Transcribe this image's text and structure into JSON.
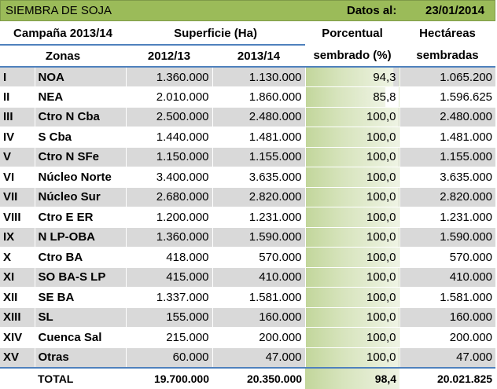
{
  "title": "SIEMBRA DE SOJA",
  "date_label": "Datos al:",
  "date_value": "23/01/2014",
  "headers": {
    "campaign": "Campaña 2013/14",
    "surface": "Superficie (Ha)",
    "percent_l1": "Porcentual",
    "percent_l2": "sembrado (%)",
    "hect_l1": "Hectáreas",
    "hect_l2": "sembradas",
    "zones": "Zonas",
    "y1": "2012/13",
    "y2": "2013/14"
  },
  "rows": [
    {
      "roman": "I",
      "zone": "NOA",
      "y1": "1.360.000",
      "y2": "1.130.000",
      "pct": "94,3",
      "hect": "1.065.200"
    },
    {
      "roman": "II",
      "zone": "NEA",
      "y1": "2.010.000",
      "y2": "1.860.000",
      "pct": "85,8",
      "hect": "1.596.625"
    },
    {
      "roman": "III",
      "zone": "Ctro N Cba",
      "y1": "2.500.000",
      "y2": "2.480.000",
      "pct": "100,0",
      "hect": "2.480.000"
    },
    {
      "roman": "IV",
      "zone": "S Cba",
      "y1": "1.440.000",
      "y2": "1.481.000",
      "pct": "100,0",
      "hect": "1.481.000"
    },
    {
      "roman": "V",
      "zone": "Ctro N SFe",
      "y1": "1.150.000",
      "y2": "1.155.000",
      "pct": "100,0",
      "hect": "1.155.000"
    },
    {
      "roman": "VI",
      "zone": "Núcleo Norte",
      "y1": "3.400.000",
      "y2": "3.635.000",
      "pct": "100,0",
      "hect": "3.635.000"
    },
    {
      "roman": "VII",
      "zone": "Núcleo Sur",
      "y1": "2.680.000",
      "y2": "2.820.000",
      "pct": "100,0",
      "hect": "2.820.000"
    },
    {
      "roman": "VIII",
      "zone": "Ctro E ER",
      "y1": "1.200.000",
      "y2": "1.231.000",
      "pct": "100,0",
      "hect": "1.231.000"
    },
    {
      "roman": "IX",
      "zone": "N LP-OBA",
      "y1": "1.360.000",
      "y2": "1.590.000",
      "pct": "100,0",
      "hect": "1.590.000"
    },
    {
      "roman": "X",
      "zone": "Ctro BA",
      "y1": "418.000",
      "y2": "570.000",
      "pct": "100,0",
      "hect": "570.000"
    },
    {
      "roman": "XI",
      "zone": "SO BA-S LP",
      "y1": "415.000",
      "y2": "410.000",
      "pct": "100,0",
      "hect": "410.000"
    },
    {
      "roman": "XII",
      "zone": "SE BA",
      "y1": "1.337.000",
      "y2": "1.581.000",
      "pct": "100,0",
      "hect": "1.581.000"
    },
    {
      "roman": "XIII",
      "zone": "SL",
      "y1": "155.000",
      "y2": "160.000",
      "pct": "100,0",
      "hect": "160.000"
    },
    {
      "roman": "XIV",
      "zone": "Cuenca Sal",
      "y1": "215.000",
      "y2": "200.000",
      "pct": "100,0",
      "hect": "200.000"
    },
    {
      "roman": "XV",
      "zone": "Otras",
      "y1": "60.000",
      "y2": "47.000",
      "pct": "100,0",
      "hect": "47.000"
    }
  ],
  "total": {
    "label": "TOTAL",
    "y1": "19.700.000",
    "y2": "20.350.000",
    "pct": "98,4",
    "hect": "20.021.825"
  },
  "colors": {
    "title_bg": "#9bbb59",
    "row_gray": "#d9d9d9",
    "accent_line": "#4f81bd",
    "bar_green": "#c2d69b"
  }
}
